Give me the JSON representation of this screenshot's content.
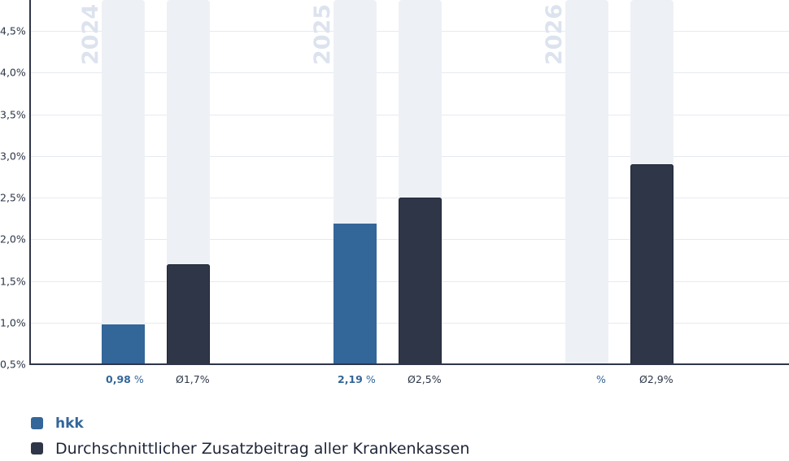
{
  "chart_data": {
    "type": "bar",
    "title": "",
    "xlabel": "",
    "ylabel": "",
    "ylim": [
      0.5,
      4.9
    ],
    "y_ticks": [
      "0,5%",
      "1,0%",
      "1,5%",
      "2,0%",
      "2,5%",
      "3,0%",
      "3,5%",
      "4,0%",
      "4,5%"
    ],
    "categories": [
      "2024",
      "2025",
      "2026"
    ],
    "series": [
      {
        "name": "hkk",
        "color": "#336699",
        "values": [
          0.98,
          2.19,
          null
        ],
        "labels": [
          "0,98",
          "2,19",
          ""
        ],
        "unit": "%"
      },
      {
        "name": "Durchschnittlicher Zusatzbeitrag aller Krankenkassen",
        "color": "#2e3648",
        "values": [
          1.7,
          2.5,
          2.9
        ],
        "labels": [
          "Ø1,7%",
          "Ø2,5%",
          "Ø2,9%"
        ]
      }
    ],
    "grid": true,
    "legend_position": "bottom-left"
  },
  "legend": {
    "items": [
      {
        "label": "hkk",
        "color": "#336699"
      },
      {
        "label": "Durchschnittlicher Zusatzbeitrag aller Krankenkassen",
        "color": "#2e3648"
      }
    ]
  }
}
